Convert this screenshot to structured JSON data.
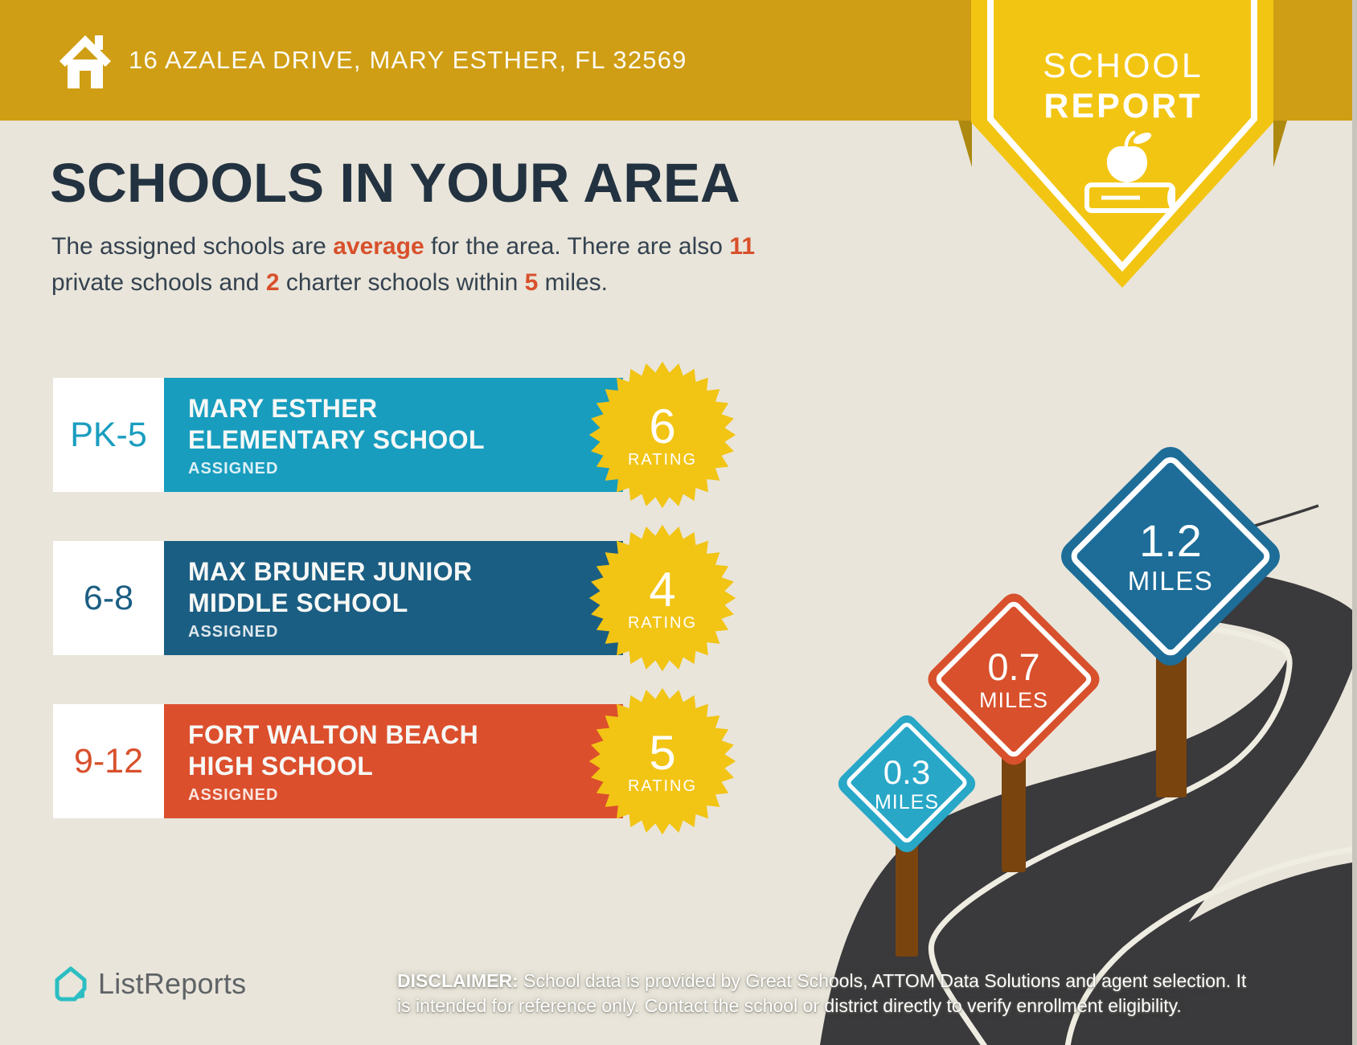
{
  "header": {
    "address": "16 AZALEA DRIVE, MARY ESTHER, FL 32569"
  },
  "ribbon": {
    "line1": "SCHOOL",
    "line2": "REPORT"
  },
  "main": {
    "title": "SCHOOLS IN YOUR AREA",
    "intro": {
      "line1_seg1": "The assigned schools are ",
      "line1_hl1": "average",
      "line1_seg2": " for the area. There are also ",
      "line1_hl2": "11",
      "line2_seg1": "private schools and ",
      "line2_hl1": "2",
      "line2_seg2": " charter schools within ",
      "line2_hl2": "5",
      "line2_seg3": " miles."
    }
  },
  "schools": [
    {
      "grades": "PK-5",
      "name_line1": "MARY ESTHER",
      "name_line2": "ELEMENTARY SCHOOL",
      "status": "ASSIGNED",
      "rating": "6",
      "rating_label": "RATING"
    },
    {
      "grades": "6-8",
      "name_line1": "MAX BRUNER JUNIOR",
      "name_line2": "MIDDLE SCHOOL",
      "status": "ASSIGNED",
      "rating": "4",
      "rating_label": "RATING"
    },
    {
      "grades": "9-12",
      "name_line1": "FORT WALTON BEACH",
      "name_line2": "HIGH SCHOOL",
      "status": "ASSIGNED",
      "rating": "5",
      "rating_label": "RATING"
    }
  ],
  "distance_signs": [
    {
      "distance": "0.3",
      "unit": "MILES"
    },
    {
      "distance": "0.7",
      "unit": "MILES"
    },
    {
      "distance": "1.2",
      "unit": "MILES"
    }
  ],
  "footer": {
    "brand": "ListReports",
    "disclaimer_label": "DISCLAIMER:",
    "disclaimer_line1": " School data is provided by Great Schools, ATTOM Data Solutions and agent selection. It",
    "disclaimer_line2": "is intended for reference only. Contact the school or district directly to verify enrollment eligibility."
  },
  "colors": {
    "header_gold": "#D09E14",
    "ribbon_yellow": "#F3C513",
    "title_navy": "#233240",
    "accent_red": "#D8502B",
    "elementary_teal": "#189DBF",
    "middle_blue": "#1B5E83",
    "high_red": "#DC4F2D",
    "burst_yellow": "#F2C414",
    "road_dark": "#3A393B",
    "post_brown": "#7A440F",
    "sign_teal": "#28A7C7",
    "sign_red": "#D8502C",
    "sign_blue": "#1D6D98",
    "background": "#E9E5DA",
    "logo_teal": "#2BBEC3"
  }
}
